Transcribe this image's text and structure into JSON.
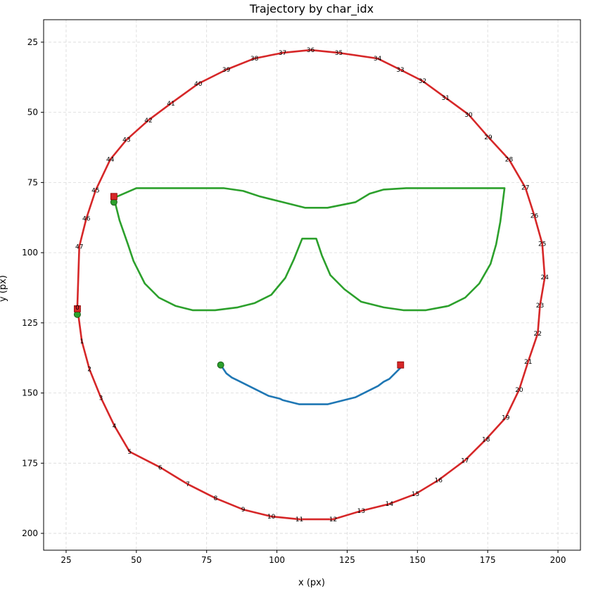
{
  "chart_data": {
    "type": "line",
    "title": "Trajectory by char_idx",
    "xlabel": "x (px)",
    "ylabel": "y (px)",
    "xlim": [
      17,
      208
    ],
    "ylim": [
      206,
      17
    ],
    "y_inverted": true,
    "grid": true,
    "xticks": [
      25,
      50,
      75,
      100,
      125,
      150,
      175,
      200
    ],
    "yticks": [
      25,
      50,
      75,
      100,
      125,
      150,
      175,
      200
    ],
    "series": [
      {
        "color": "#d62728",
        "closed": true,
        "x": [
          29,
          30.6,
          33.3,
          37.4,
          42.2,
          47.6,
          58.5,
          68.3,
          78.2,
          88,
          98,
          108,
          120,
          130,
          140,
          149.3,
          157.5,
          166.9,
          174.4,
          181.4,
          186.2,
          189.4,
          192.8,
          193.6,
          195.3,
          194.4,
          191.6,
          188.4,
          182.6,
          175.2,
          168.2,
          160,
          151.8,
          143.9,
          135.8,
          122,
          112,
          102,
          92,
          82,
          72,
          62.3,
          54.3,
          46.5,
          40.7,
          35.5,
          32.2,
          29.7
        ],
        "y": [
          119.5,
          131.5,
          141.5,
          151.7,
          161.7,
          170.9,
          176.5,
          182.5,
          187.5,
          191.5,
          194,
          195,
          195,
          192,
          189.5,
          186,
          181,
          174,
          166.5,
          158.8,
          148.8,
          138.8,
          128.8,
          118.8,
          108.8,
          96.8,
          86.8,
          76.8,
          66.8,
          58.8,
          50.8,
          44.8,
          38.8,
          34.8,
          30.8,
          28.8,
          27.8,
          28.8,
          30.8,
          34.8,
          39.8,
          46.8,
          52.8,
          59.8,
          66.8,
          77.8,
          87.8,
          97.8
        ],
        "labels": [
          "0",
          "1",
          "2",
          "3",
          "4",
          "5",
          "6",
          "7",
          "8",
          "9",
          "10",
          "11",
          "12",
          "13",
          "14",
          "15",
          "16",
          "17",
          "18",
          "19",
          "20",
          "21",
          "22",
          "23",
          "24",
          "25",
          "26",
          "27",
          "28",
          "29",
          "30",
          "31",
          "32",
          "33",
          "34",
          "35",
          "36",
          "37",
          "38",
          "39",
          "40",
          "41",
          "42",
          "43",
          "44",
          "45",
          "46",
          "47"
        ]
      },
      {
        "color": "#2ca02c",
        "closed": true,
        "x": [
          42,
          44,
          47,
          49,
          53,
          58,
          64,
          70,
          78,
          86,
          92,
          98,
          103,
          106,
          109,
          114,
          116,
          119,
          124,
          130,
          138,
          145,
          153,
          161,
          167,
          172,
          176,
          178,
          179.5,
          181,
          178.5,
          170,
          162,
          154,
          146,
          138,
          133,
          128,
          118,
          110,
          102,
          94,
          88,
          81,
          76,
          70,
          64,
          57,
          50
        ],
        "y": [
          80.5,
          88.5,
          97,
          103,
          111,
          116,
          119,
          120.5,
          120.5,
          119.5,
          118,
          115,
          109,
          102.5,
          95,
          95,
          101,
          108,
          113,
          117.5,
          119.5,
          120.5,
          120.5,
          119,
          116,
          111,
          104,
          97,
          89,
          77,
          77,
          77,
          77,
          77,
          77,
          77.5,
          79,
          82,
          84,
          84,
          82,
          80,
          78,
          77,
          77,
          77,
          77,
          77,
          77
        ]
      },
      {
        "color": "#1f77b4",
        "closed": false,
        "x": [
          80,
          82,
          84,
          86,
          89,
          91,
          93,
          95,
          97,
          99,
          101,
          102,
          104,
          106,
          108,
          110,
          112,
          114,
          116,
          118,
          120,
          122,
          124,
          126,
          128,
          130,
          132,
          134,
          136,
          138,
          140,
          142,
          144
        ],
        "y": [
          140,
          143,
          144.5,
          145.5,
          147,
          148,
          149,
          150,
          151,
          151.5,
          152,
          152.5,
          153,
          153.5,
          154,
          154,
          154,
          154,
          154,
          154,
          153.5,
          153,
          152.5,
          152,
          151.5,
          150.5,
          149.5,
          148.5,
          147.5,
          146,
          145,
          143,
          141
        ]
      }
    ],
    "start_markers": [
      {
        "x": 29,
        "y": 122,
        "color": "#2ca02c"
      },
      {
        "x": 42,
        "y": 82,
        "color": "#2ca02c"
      },
      {
        "x": 80,
        "y": 140,
        "color": "#2ca02c"
      }
    ],
    "end_markers": [
      {
        "x": 29,
        "y": 120,
        "color": "#d62728"
      },
      {
        "x": 42,
        "y": 80,
        "color": "#d62728"
      },
      {
        "x": 144,
        "y": 140,
        "color": "#d62728"
      }
    ]
  }
}
